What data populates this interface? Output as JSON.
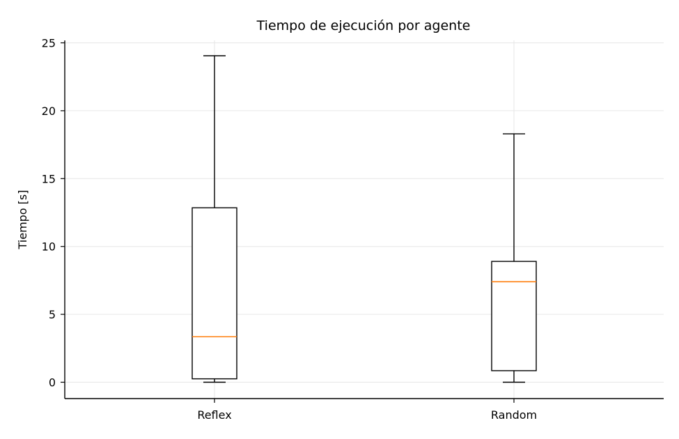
{
  "chart_data": {
    "type": "box",
    "title": "Tiempo de ejecución por agente",
    "xlabel": "",
    "ylabel": "Tiempo [s]",
    "ylim": [
      -1.2,
      25.2
    ],
    "yticks": [
      0,
      5,
      10,
      15,
      20,
      25
    ],
    "grid": true,
    "categories": [
      "Reflex",
      "Random"
    ],
    "boxes": [
      {
        "category": "Reflex",
        "whisker_low": 0.0,
        "q1": 0.25,
        "median": 3.35,
        "q3": 12.85,
        "whisker_high": 24.05
      },
      {
        "category": "Random",
        "whisker_low": 0.0,
        "q1": 0.85,
        "median": 7.4,
        "q3": 8.9,
        "whisker_high": 18.3
      }
    ],
    "colors": {
      "box": "#000000",
      "median": "#ff7f0e",
      "grid": "#e6e6e6"
    }
  }
}
